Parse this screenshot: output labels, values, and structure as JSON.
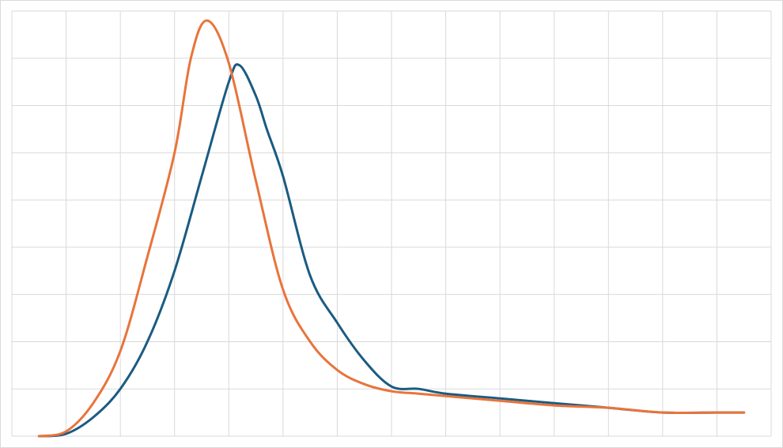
{
  "chart_data": {
    "type": "line",
    "title": "",
    "xlabel": "",
    "ylabel": "",
    "xlim": [
      0,
      14
    ],
    "ylim": [
      0,
      9
    ],
    "grid": true,
    "x_gridlines": [
      0,
      1,
      2,
      3,
      4,
      5,
      6,
      7,
      8,
      9,
      10,
      11,
      12,
      13,
      14
    ],
    "y_gridlines": [
      0,
      1,
      2,
      3,
      4,
      5,
      6,
      7,
      8,
      9
    ],
    "legend": "none",
    "series": [
      {
        "color": "#1a5b82",
        "x": [
          0.5,
          1.0,
          1.5,
          2.0,
          2.5,
          3.0,
          3.5,
          4.0,
          4.2,
          4.5,
          4.7,
          5.0,
          5.5,
          6.0,
          6.5,
          7.0,
          7.5,
          8.0,
          9.0,
          10.0,
          11.0,
          12.0,
          13.0,
          13.5
        ],
        "y": [
          0.0,
          0.05,
          0.4,
          1.0,
          2.0,
          3.5,
          5.5,
          7.5,
          7.85,
          7.2,
          6.5,
          5.5,
          3.4,
          2.4,
          1.6,
          1.05,
          1.0,
          0.9,
          0.8,
          0.7,
          0.6,
          0.5,
          0.5,
          0.5
        ]
      },
      {
        "color": "#e8743b",
        "x": [
          0.5,
          1.0,
          1.5,
          2.0,
          2.5,
          3.0,
          3.3,
          3.6,
          4.0,
          4.5,
          5.0,
          5.5,
          6.0,
          6.5,
          7.0,
          7.5,
          8.0,
          9.0,
          10.0,
          11.0,
          12.0,
          13.0,
          13.5
        ],
        "y": [
          0.0,
          0.1,
          0.7,
          1.8,
          3.8,
          6.0,
          8.0,
          8.8,
          7.9,
          5.4,
          3.1,
          2.0,
          1.4,
          1.1,
          0.95,
          0.9,
          0.85,
          0.75,
          0.65,
          0.6,
          0.5,
          0.5,
          0.5
        ]
      }
    ]
  }
}
